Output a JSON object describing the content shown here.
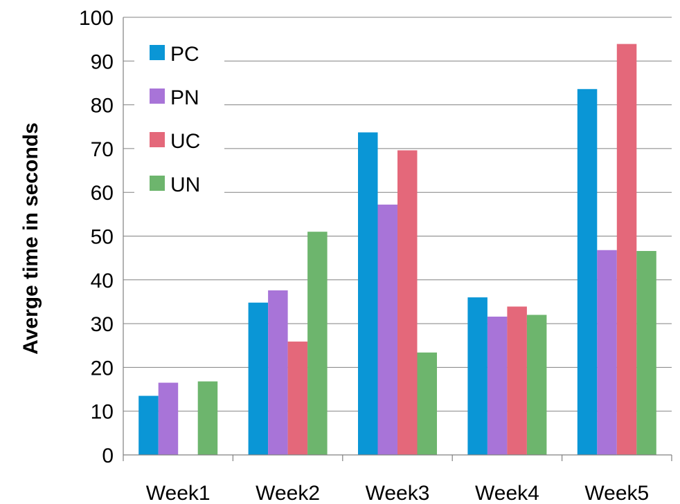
{
  "chart_data": {
    "type": "bar",
    "title": "",
    "xlabel": "",
    "ylabel": "Averge time in seconds",
    "ylim": [
      0,
      100
    ],
    "y_ticks": [
      0,
      10,
      20,
      30,
      40,
      50,
      60,
      70,
      80,
      90,
      100
    ],
    "grid": true,
    "legend_position": "top-left",
    "categories": [
      "Week1",
      "Week2",
      "Week3",
      "Week4",
      "Week5"
    ],
    "series": [
      {
        "name": "PC",
        "color": "#0a96d6",
        "values": [
          13.5,
          34.8,
          73.7,
          36.0,
          83.6
        ]
      },
      {
        "name": "PN",
        "color": "#a874d8",
        "values": [
          16.5,
          37.6,
          57.2,
          31.6,
          46.8
        ]
      },
      {
        "name": "UC",
        "color": "#e4687a",
        "values": [
          0,
          25.9,
          69.6,
          33.9,
          93.9
        ]
      },
      {
        "name": "UN",
        "color": "#6db56d",
        "values": [
          16.8,
          51.0,
          23.4,
          32.0,
          46.6
        ]
      }
    ]
  }
}
